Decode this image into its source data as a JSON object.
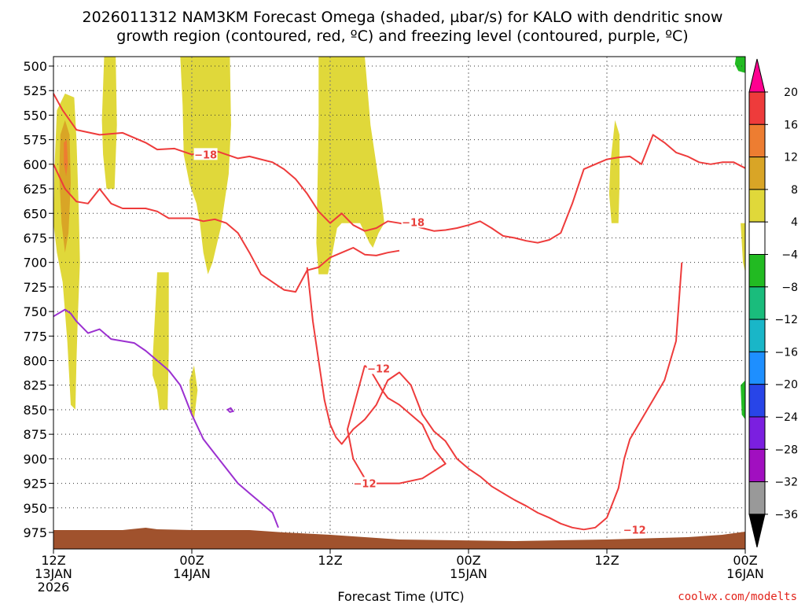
{
  "chart_data": {
    "type": "time-height cross section",
    "title_line1": "2026011312 NAM3KM Forecast Omega (shaded, µbar/s) for KALO with dendritic snow",
    "title_line2": "growth region (contoured, red, ºC) and freezing level (contoured, purple, ºC)",
    "xlabel": "Forecast Time (UTC)",
    "credit": "coolwx.com/modelts",
    "y_axis": {
      "units": "hPa",
      "levels": [
        500,
        525,
        550,
        575,
        600,
        625,
        650,
        675,
        700,
        725,
        750,
        775,
        800,
        825,
        850,
        875,
        900,
        925,
        950,
        975
      ],
      "ylim": [
        490,
        1000
      ]
    },
    "x_axis": {
      "units": "forecast hour",
      "xlim": [
        0,
        60
      ],
      "ticks": [
        {
          "hour": 0,
          "line1": "12Z",
          "line2": "13JAN",
          "line3": "2026"
        },
        {
          "hour": 12,
          "line1": "00Z",
          "line2": "14JAN",
          "line3": ""
        },
        {
          "hour": 24,
          "line1": "12Z",
          "line2": "",
          "line3": ""
        },
        {
          "hour": 36,
          "line1": "00Z",
          "line2": "15JAN",
          "line3": ""
        },
        {
          "hour": 48,
          "line1": "12Z",
          "line2": "",
          "line3": ""
        },
        {
          "hour": 60,
          "line1": "00Z",
          "line2": "16JAN",
          "line3": ""
        }
      ]
    },
    "colorbar": {
      "labels": [
        "20",
        "16",
        "12",
        "8",
        "4",
        "−4",
        "−8",
        "−12",
        "−16",
        "−20",
        "−24",
        "−28",
        "−32",
        "−36"
      ],
      "colors": [
        "#ff0090",
        "#ee3b3b",
        "#ed7d31",
        "#d9a526",
        "#e0d83a",
        "#ffffff",
        "#22bb22",
        "#1abc7c",
        "#19b6c8",
        "#1e8fff",
        "#2845e8",
        "#7b1fe0",
        "#a10fc0",
        "#999999",
        "#000000"
      ]
    },
    "omega_shading": [
      {
        "level": "4 to 8",
        "color": "#e0d83a",
        "region": "hour 0-2.0, 530-850 hPa"
      },
      {
        "level": "8 to 12",
        "color": "#d9a526",
        "region": "hour 0.5-1.5, 560-640 hPa"
      },
      {
        "level": "12 to 16",
        "color": "#ed7d31",
        "region": "hour 1.0, 575-610 hPa"
      },
      {
        "level": "4 to 8",
        "color": "#e0d83a",
        "region": "hour 4.2-5.5, 490-625 hPa"
      },
      {
        "level": "4 to 8",
        "color": "#e0d83a",
        "region": "hour 8.5-10, 710-850 hPa"
      },
      {
        "level": "4 to 8",
        "color": "#e0d83a",
        "region": "hour 11-15.5, 490-710 hPa"
      },
      {
        "level": "4 to 8",
        "color": "#e0d83a",
        "region": "hour 23-29, 490-715 hPa"
      },
      {
        "level": "4 to 8",
        "color": "#e0d83a",
        "region": "hour 48.5-49, 555-660 hPa"
      },
      {
        "level": "-4 to -8",
        "color": "#22bb22",
        "region": "hour 59.5-60, 500 hPa and 825-860 hPa"
      }
    ],
    "dgz_contours": [
      {
        "label": "−18",
        "color": "#ee3b3b",
        "x": [
          0,
          0.8,
          2,
          4,
          6,
          8,
          9,
          10.5,
          12,
          13,
          14,
          15,
          16,
          17,
          18,
          19,
          20,
          21,
          22,
          23,
          24,
          25,
          26,
          27,
          28,
          29,
          30,
          31,
          32,
          33,
          34,
          35,
          36,
          37,
          38,
          39,
          40,
          41,
          42,
          43,
          44,
          45,
          46,
          47,
          48,
          49,
          50,
          51,
          52,
          53,
          54,
          55,
          56,
          57,
          58,
          59,
          60
        ],
        "y": [
          528,
          545,
          565,
          570,
          568,
          578,
          585,
          584,
          590,
          588,
          586,
          590,
          594,
          592,
          595,
          598,
          605,
          615,
          630,
          648,
          660,
          650,
          662,
          668,
          665,
          658,
          660,
          662,
          665,
          668,
          667,
          665,
          662,
          658,
          665,
          673,
          675,
          678,
          680,
          677,
          670,
          640,
          605,
          600,
          595,
          593,
          592,
          600,
          570,
          578,
          588,
          592,
          598,
          600,
          598,
          598,
          604
        ]
      },
      {
        "label": "−18 (lower)",
        "color": "#ee3b3b",
        "x": [
          0,
          1,
          2,
          3,
          4,
          5,
          6,
          8,
          9,
          10,
          12,
          13,
          14,
          15,
          16,
          17,
          18,
          19,
          20,
          21,
          22,
          23,
          24,
          25,
          26,
          27,
          28,
          29,
          30
        ],
        "y": [
          600,
          625,
          638,
          640,
          625,
          640,
          645,
          645,
          648,
          655,
          655,
          658,
          656,
          660,
          670,
          690,
          712,
          720,
          728,
          730,
          708,
          705,
          695,
          690,
          685,
          692,
          693,
          690,
          688
        ]
      },
      {
        "label": "−12",
        "color": "#ee3b3b",
        "x": [
          22,
          22.5,
          23,
          23.5,
          24,
          24.5,
          25,
          26,
          27,
          28,
          29,
          30,
          31,
          31.5,
          32,
          33,
          34,
          35,
          36,
          37,
          38,
          39,
          40,
          41,
          42,
          43,
          44,
          45,
          46,
          47,
          48,
          49,
          49.5,
          50,
          51,
          52,
          53,
          54,
          54.5
        ],
        "y": [
          705,
          760,
          800,
          840,
          865,
          878,
          885,
          870,
          860,
          845,
          820,
          812,
          825,
          840,
          855,
          872,
          882,
          900,
          910,
          918,
          928,
          935,
          942,
          948,
          955,
          960,
          966,
          970,
          972,
          970,
          960,
          930,
          900,
          880,
          860,
          840,
          820,
          780,
          700
        ]
      },
      {
        "label": "−12 (closed)",
        "color": "#ee3b3b",
        "x": [
          27,
          27.5,
          28,
          28.5,
          29,
          30,
          31,
          32,
          33,
          34,
          32,
          30,
          28,
          27,
          26,
          25.5
        ],
        "y": [
          805,
          810,
          820,
          830,
          838,
          845,
          855,
          865,
          890,
          905,
          920,
          925,
          925,
          920,
          900,
          870
        ]
      }
    ],
    "freezing_level": [
      {
        "label": "0°C",
        "color": "#9b30d0",
        "x": [
          0,
          1,
          1.5,
          2,
          3,
          4,
          5,
          6,
          7,
          8,
          9,
          10,
          11,
          11.5,
          12,
          13,
          14,
          15,
          16,
          17,
          18,
          19,
          19.5
        ],
        "y": [
          755,
          748,
          752,
          760,
          772,
          768,
          778,
          780,
          782,
          790,
          800,
          810,
          825,
          840,
          855,
          880,
          895,
          910,
          925,
          935,
          945,
          955,
          970
        ]
      }
    ],
    "terrain_hpa": 980
  }
}
